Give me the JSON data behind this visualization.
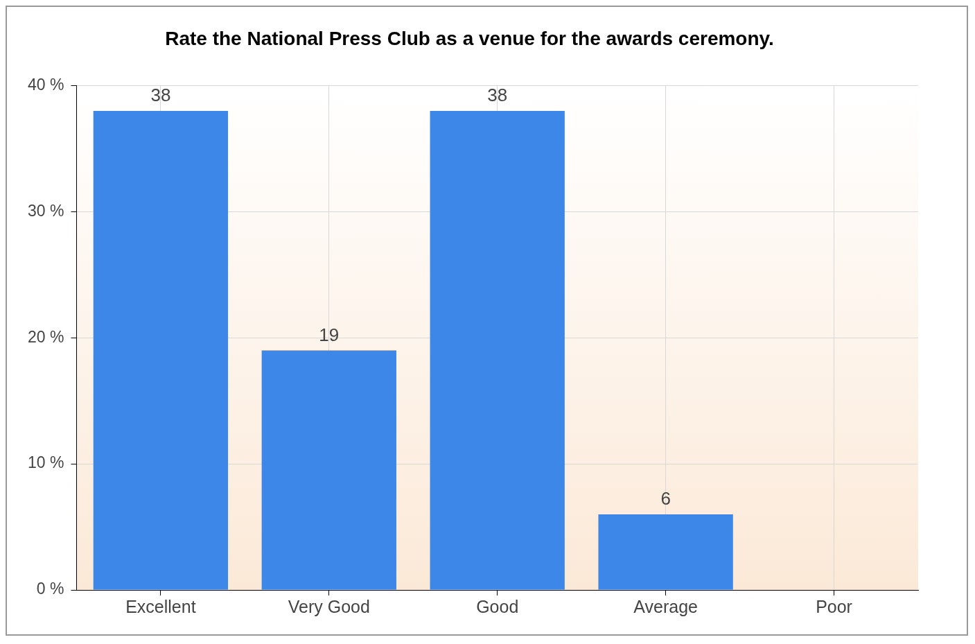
{
  "chart_data": {
    "type": "bar",
    "title": "Rate the National Press Club as a venue for the awards ceremony.",
    "categories": [
      "Excellent",
      "Very Good",
      "Good",
      "Average",
      "Poor"
    ],
    "values": [
      38,
      19,
      38,
      6,
      0
    ],
    "value_labels": [
      "38",
      "19",
      "38",
      "6",
      null
    ],
    "color": "#3d87e8",
    "ylim": [
      0,
      40
    ],
    "yticks": [
      {
        "value": 0,
        "label": "0 %"
      },
      {
        "value": 10,
        "label": "10 %"
      },
      {
        "value": 20,
        "label": "20 %"
      },
      {
        "value": 30,
        "label": "30 %"
      },
      {
        "value": 40,
        "label": "40 %"
      }
    ],
    "grid": true,
    "legend": false
  }
}
